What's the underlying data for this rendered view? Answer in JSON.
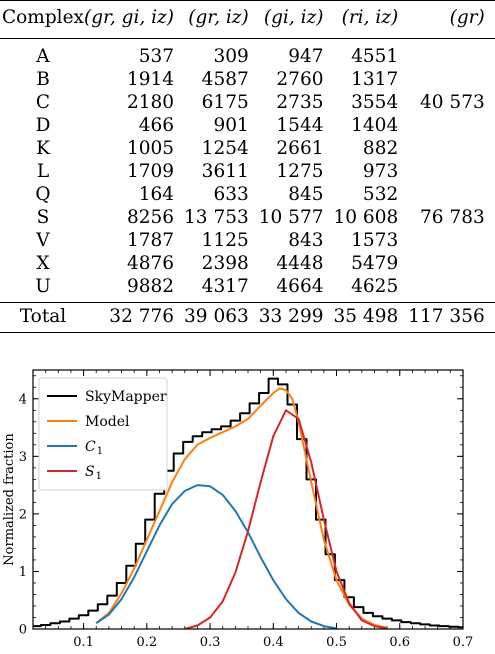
{
  "table": {
    "headers": [
      "Complex",
      "(gr, gi, iz)",
      "(gr, iz)",
      "(gi, iz)",
      "(ri, iz)",
      "(gr)"
    ],
    "rows": [
      {
        "complex": "A",
        "v": [
          "537",
          "309",
          "947",
          "4551",
          ""
        ]
      },
      {
        "complex": "B",
        "v": [
          "1914",
          "4587",
          "2760",
          "1317",
          ""
        ]
      },
      {
        "complex": "C",
        "v": [
          "2180",
          "6175",
          "2735",
          "3554",
          "40 573"
        ]
      },
      {
        "complex": "D",
        "v": [
          "466",
          "901",
          "1544",
          "1404",
          ""
        ]
      },
      {
        "complex": "K",
        "v": [
          "1005",
          "1254",
          "2661",
          "882",
          ""
        ]
      },
      {
        "complex": "L",
        "v": [
          "1709",
          "3611",
          "1275",
          "973",
          ""
        ]
      },
      {
        "complex": "Q",
        "v": [
          "164",
          "633",
          "845",
          "532",
          ""
        ]
      },
      {
        "complex": "S",
        "v": [
          "8256",
          "13 753",
          "10 577",
          "10 608",
          "76 783"
        ]
      },
      {
        "complex": "V",
        "v": [
          "1787",
          "1125",
          "843",
          "1573",
          ""
        ]
      },
      {
        "complex": "X",
        "v": [
          "4876",
          "2398",
          "4448",
          "5479",
          ""
        ]
      },
      {
        "complex": "U",
        "v": [
          "9882",
          "4317",
          "4664",
          "4625",
          ""
        ]
      }
    ],
    "total": {
      "label": "Total",
      "v": [
        "32 776",
        "39 063",
        "33 299",
        "35 498",
        "117 356"
      ]
    }
  },
  "chart_data": {
    "type": "line",
    "ylabel": "Normalized fraction",
    "xlabel": "",
    "xlim": [
      0.02,
      0.7
    ],
    "ylim": [
      0,
      4.5
    ],
    "xticks": [
      0.1,
      0.2,
      0.3,
      0.4,
      0.5,
      0.6,
      0.7
    ],
    "xtick_labels": [
      "0.1",
      "0.2",
      "0.3",
      "0.4",
      "0.5",
      "0.6",
      "0.7"
    ],
    "yticks": [
      0,
      1,
      2,
      3,
      4
    ],
    "ytick_labels": [
      "0",
      "1",
      "2",
      "3",
      "4"
    ],
    "legend_position": "top-left",
    "series": [
      {
        "name": "SkyMapper",
        "style": "step",
        "color": "#000000",
        "x": [
          0.025,
          0.04,
          0.055,
          0.07,
          0.085,
          0.1,
          0.115,
          0.13,
          0.145,
          0.16,
          0.175,
          0.19,
          0.205,
          0.22,
          0.235,
          0.25,
          0.265,
          0.28,
          0.295,
          0.31,
          0.325,
          0.34,
          0.355,
          0.37,
          0.385,
          0.4,
          0.415,
          0.43,
          0.445,
          0.46,
          0.475,
          0.49,
          0.505,
          0.52,
          0.535,
          0.55,
          0.565,
          0.58,
          0.595,
          0.61,
          0.625,
          0.64,
          0.655,
          0.67,
          0.685,
          0.7
        ],
        "y": [
          0.05,
          0.07,
          0.1,
          0.13,
          0.18,
          0.24,
          0.32,
          0.43,
          0.58,
          0.8,
          1.1,
          1.48,
          1.9,
          2.35,
          2.75,
          3.05,
          3.25,
          3.35,
          3.42,
          3.47,
          3.52,
          3.62,
          3.75,
          3.92,
          4.1,
          4.35,
          4.25,
          3.9,
          3.3,
          2.6,
          1.9,
          1.3,
          0.85,
          0.55,
          0.38,
          0.28,
          0.22,
          0.18,
          0.15,
          0.12,
          0.1,
          0.08,
          0.06,
          0.05,
          0.04,
          0.03
        ]
      },
      {
        "name": "Model",
        "style": "line",
        "color": "#ff7f0e",
        "x": [
          0.12,
          0.14,
          0.16,
          0.18,
          0.2,
          0.22,
          0.24,
          0.26,
          0.28,
          0.3,
          0.32,
          0.34,
          0.36,
          0.38,
          0.4,
          0.41,
          0.42,
          0.43,
          0.44,
          0.46,
          0.48,
          0.5,
          0.52,
          0.54,
          0.56,
          0.58
        ],
        "y": [
          0.1,
          0.28,
          0.62,
          1.05,
          1.55,
          2.05,
          2.55,
          2.95,
          3.2,
          3.32,
          3.42,
          3.52,
          3.65,
          3.88,
          4.1,
          4.18,
          4.15,
          4.0,
          3.6,
          2.55,
          1.55,
          0.85,
          0.42,
          0.18,
          0.07,
          0.02
        ]
      },
      {
        "name": "C_1",
        "style": "line",
        "color": "#1f77b4",
        "x": [
          0.12,
          0.14,
          0.16,
          0.18,
          0.2,
          0.22,
          0.24,
          0.26,
          0.28,
          0.3,
          0.32,
          0.34,
          0.36,
          0.38,
          0.4,
          0.42,
          0.44,
          0.46,
          0.48,
          0.5
        ],
        "y": [
          0.1,
          0.25,
          0.52,
          0.9,
          1.35,
          1.8,
          2.17,
          2.4,
          2.5,
          2.48,
          2.33,
          2.05,
          1.68,
          1.25,
          0.85,
          0.52,
          0.28,
          0.13,
          0.05,
          0.01
        ]
      },
      {
        "name": "S_1",
        "style": "line",
        "color": "#d62728",
        "x": [
          0.26,
          0.28,
          0.3,
          0.32,
          0.34,
          0.36,
          0.38,
          0.4,
          0.42,
          0.44,
          0.46,
          0.48,
          0.5,
          0.52,
          0.54,
          0.56,
          0.58
        ],
        "y": [
          0.0,
          0.06,
          0.2,
          0.48,
          0.98,
          1.7,
          2.55,
          3.35,
          3.8,
          3.65,
          2.9,
          1.9,
          1.0,
          0.45,
          0.15,
          0.05,
          0.01
        ]
      }
    ],
    "legend": [
      {
        "label": "SkyMapper",
        "color": "#000000"
      },
      {
        "label": "Model",
        "color": "#ff7f0e"
      },
      {
        "label": "C",
        "sub": "1",
        "color": "#1f77b4"
      },
      {
        "label": "S",
        "sub": "1",
        "color": "#d62728"
      }
    ]
  }
}
